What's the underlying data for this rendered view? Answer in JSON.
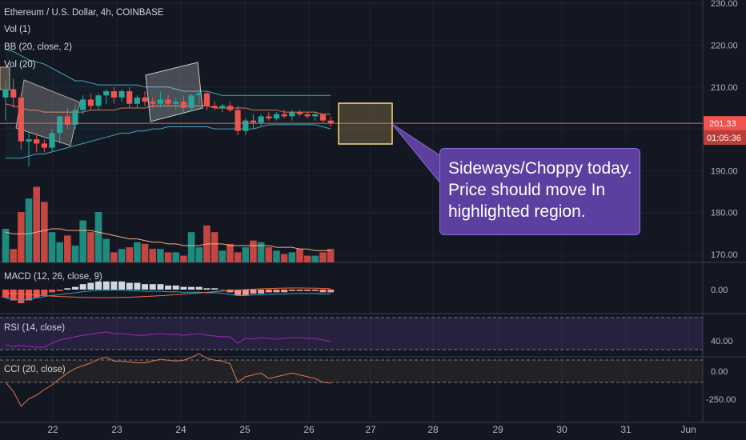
{
  "header": {
    "symbol_line": "Ethereum / U.S. Dollar, 4h, COINBASE",
    "indicators": [
      "Vol (1)",
      "BB (20, close, 2)",
      "Vol (20)"
    ]
  },
  "panes": {
    "macd_label": "MACD (12, 26, close, 9)",
    "rsi_label": "RSI (14, close)",
    "cci_label": "CCI (20, close)"
  },
  "price_axis": {
    "labels": [
      "230.00",
      "220.00",
      "210.00",
      "201.33",
      "190.00",
      "180.00",
      "170.00"
    ],
    "current_price": "201.33",
    "countdown": "01:05:36"
  },
  "macd_axis": [
    "0.00"
  ],
  "rsi_axis": [
    "40.00"
  ],
  "cci_axis": [
    "0.00",
    "-250.00"
  ],
  "x_axis": [
    "22",
    "23",
    "24",
    "25",
    "26",
    "27",
    "28",
    "29",
    "30",
    "31",
    "Jun"
  ],
  "annotation": {
    "lines": [
      "Sideways/Choppy today.",
      "Price should move In",
      "highlighted region."
    ]
  },
  "colors": {
    "background": "#131722",
    "up": "#26a69a",
    "down": "#ef5350",
    "bb_band": "#4aa3b8",
    "bb_basis": "#e0744e",
    "volume_ma": "#f0b27a",
    "price_line": "#e06a5d",
    "highlight_box_border": "#f5d98b",
    "callout_bg": "#5d3f9f",
    "rsi_line": "#9c27b0",
    "cci_line": "#e0744e",
    "macd_line": "#26a3c7"
  },
  "chart_data": {
    "type": "candlestick",
    "x_label": "",
    "y_label": "",
    "ylim": [
      165,
      230
    ],
    "x_ticks": [
      "22",
      "23",
      "24",
      "25",
      "26",
      "27",
      "28",
      "29",
      "30",
      "31",
      "Jun"
    ],
    "candles": [
      {
        "o": 207.5,
        "h": 211.5,
        "l": 202,
        "c": 209.5
      },
      {
        "o": 209.5,
        "h": 212,
        "l": 205,
        "c": 207.5
      },
      {
        "o": 207.5,
        "h": 208.5,
        "l": 195,
        "c": 197
      },
      {
        "o": 197,
        "h": 199,
        "l": 191,
        "c": 197.5
      },
      {
        "o": 197.5,
        "h": 199,
        "l": 194.5,
        "c": 196.5
      },
      {
        "o": 196.5,
        "h": 197.5,
        "l": 194.5,
        "c": 195.5
      },
      {
        "o": 195.5,
        "h": 200,
        "l": 194.5,
        "c": 199
      },
      {
        "o": 199,
        "h": 203,
        "l": 196.5,
        "c": 203
      },
      {
        "o": 203,
        "h": 205,
        "l": 200,
        "c": 201
      },
      {
        "o": 201,
        "h": 206,
        "l": 200,
        "c": 204.5
      },
      {
        "o": 204.5,
        "h": 208,
        "l": 203.5,
        "c": 207
      },
      {
        "o": 207,
        "h": 208.5,
        "l": 204.5,
        "c": 205.5
      },
      {
        "o": 205.5,
        "h": 208.5,
        "l": 204.5,
        "c": 208
      },
      {
        "o": 208,
        "h": 209.5,
        "l": 206,
        "c": 209
      },
      {
        "o": 209,
        "h": 210,
        "l": 206,
        "c": 207.5
      },
      {
        "o": 207.5,
        "h": 209.5,
        "l": 206.5,
        "c": 209
      },
      {
        "o": 209,
        "h": 210,
        "l": 205,
        "c": 206
      },
      {
        "o": 206,
        "h": 208,
        "l": 205,
        "c": 207.5
      },
      {
        "o": 207.5,
        "h": 209,
        "l": 205.5,
        "c": 206.5
      },
      {
        "o": 206.5,
        "h": 207.5,
        "l": 205,
        "c": 206
      },
      {
        "o": 206,
        "h": 209,
        "l": 205,
        "c": 207
      },
      {
        "o": 207,
        "h": 208,
        "l": 205.5,
        "c": 206
      },
      {
        "o": 206,
        "h": 207.5,
        "l": 204.5,
        "c": 206.5
      },
      {
        "o": 206.5,
        "h": 208,
        "l": 204,
        "c": 205
      },
      {
        "o": 205,
        "h": 208.5,
        "l": 204.5,
        "c": 208
      },
      {
        "o": 208,
        "h": 209.5,
        "l": 206,
        "c": 208.5
      },
      {
        "o": 208.5,
        "h": 209,
        "l": 204.5,
        "c": 205.5
      },
      {
        "o": 205.5,
        "h": 206.5,
        "l": 204.5,
        "c": 205
      },
      {
        "o": 205,
        "h": 206,
        "l": 204,
        "c": 205.5
      },
      {
        "o": 205.5,
        "h": 206.5,
        "l": 204,
        "c": 204.5
      },
      {
        "o": 204.5,
        "h": 205.5,
        "l": 198.5,
        "c": 199.5
      },
      {
        "o": 199.5,
        "h": 202.5,
        "l": 198.5,
        "c": 202
      },
      {
        "o": 202,
        "h": 203.5,
        "l": 200,
        "c": 201.5
      },
      {
        "o": 201.5,
        "h": 203.5,
        "l": 200.5,
        "c": 203
      },
      {
        "o": 203,
        "h": 204,
        "l": 202,
        "c": 202.5
      },
      {
        "o": 202.5,
        "h": 204,
        "l": 202,
        "c": 203.5
      },
      {
        "o": 203.5,
        "h": 204.5,
        "l": 202.5,
        "c": 203
      },
      {
        "o": 203,
        "h": 204.5,
        "l": 202,
        "c": 204
      },
      {
        "o": 204,
        "h": 204.5,
        "l": 203,
        "c": 203.5
      },
      {
        "o": 203.5,
        "h": 204,
        "l": 202.5,
        "c": 203
      },
      {
        "o": 203,
        "h": 204,
        "l": 202,
        "c": 203.5
      },
      {
        "o": 203.5,
        "h": 203.5,
        "l": 201.5,
        "c": 202
      },
      {
        "o": 202,
        "h": 203,
        "l": 200.5,
        "c": 201.33
      }
    ],
    "bollinger": {
      "upper": [
        219,
        218.5,
        217.5,
        216.5,
        216,
        215.5,
        214.5,
        213.5,
        212.5,
        211.5,
        211.5,
        211,
        210.5,
        210.5,
        210.5,
        210.5,
        210.5,
        210.5,
        210,
        210,
        210,
        210,
        209.5,
        209,
        209,
        209,
        209,
        208.5,
        208,
        208,
        208,
        208,
        208,
        208,
        208,
        208,
        208,
        208,
        208,
        208,
        208,
        208,
        208
      ],
      "basis": [
        206,
        205.5,
        205,
        204.5,
        204.5,
        204,
        204,
        204,
        204,
        204,
        204,
        204.5,
        204.5,
        204.5,
        204.5,
        205,
        205,
        205,
        205,
        205.5,
        205.5,
        205.5,
        205.5,
        205.5,
        205.5,
        205.5,
        205.5,
        205,
        205,
        205,
        205,
        205,
        204.5,
        204.5,
        204.5,
        204.5,
        204,
        204,
        204,
        204,
        204,
        203.5,
        203.5
      ],
      "lower": [
        193,
        193,
        193,
        193.5,
        194,
        194,
        194.5,
        195,
        195.5,
        196,
        196.5,
        197,
        197.5,
        198,
        198.5,
        199,
        199,
        199.5,
        199.5,
        200,
        200,
        200.5,
        200.5,
        200.5,
        200.5,
        200.5,
        200.5,
        200,
        200,
        200,
        200,
        200,
        200,
        200.5,
        201,
        201,
        201,
        201,
        201,
        201,
        201,
        200.5,
        200
      ]
    },
    "volume": [
      20,
      8,
      30,
      38,
      45,
      36,
      18,
      12,
      16,
      10,
      25,
      18,
      30,
      14,
      6,
      8,
      9,
      12,
      11,
      8,
      8,
      6,
      6,
      4,
      18,
      9,
      22,
      18,
      7,
      11,
      6,
      9,
      13,
      12,
      9,
      7,
      5,
      6,
      8,
      4,
      4,
      6,
      8
    ],
    "volume_ma": [
      18,
      17,
      17,
      17,
      18,
      19,
      20,
      20,
      19,
      19,
      19,
      19,
      18,
      17,
      16,
      15,
      14,
      14,
      13,
      12,
      12,
      11,
      11,
      10,
      10,
      10,
      11,
      11,
      11,
      10,
      10,
      10,
      10,
      10,
      10,
      9,
      9,
      9,
      8,
      8,
      7,
      7,
      7
    ],
    "macd_histogram": [
      -3,
      -4,
      -5,
      -4,
      -3,
      -2,
      -1,
      -0.5,
      0.5,
      1,
      2,
      2.5,
      3,
      3,
      3,
      3,
      2.5,
      2.5,
      2,
      2,
      2,
      1.5,
      1.5,
      1,
      1,
      1,
      0.5,
      0.5,
      0,
      -1,
      -2,
      -2,
      -1.5,
      -1.5,
      -1,
      -1,
      -1,
      -0.5,
      -0.5,
      -0.5,
      -0.5,
      -1,
      -1
    ],
    "rsi": [
      36,
      34,
      35,
      34,
      33,
      33,
      38,
      42,
      44,
      46,
      48,
      49,
      51,
      52,
      50,
      50,
      49,
      48,
      48,
      49,
      50,
      49,
      49,
      48,
      49,
      50,
      48,
      47,
      46,
      46,
      38,
      44,
      43,
      45,
      44,
      43,
      44,
      45,
      45,
      44,
      44,
      42,
      40
    ],
    "cci": [
      -120,
      -220,
      -380,
      -300,
      -260,
      -200,
      -150,
      -80,
      -20,
      30,
      60,
      90,
      130,
      150,
      110,
      110,
      100,
      90,
      90,
      110,
      130,
      120,
      110,
      120,
      150,
      190,
      140,
      120,
      110,
      80,
      -120,
      -60,
      -40,
      -20,
      -80,
      -60,
      -40,
      -20,
      -40,
      -60,
      -80,
      -120,
      -130
    ]
  }
}
